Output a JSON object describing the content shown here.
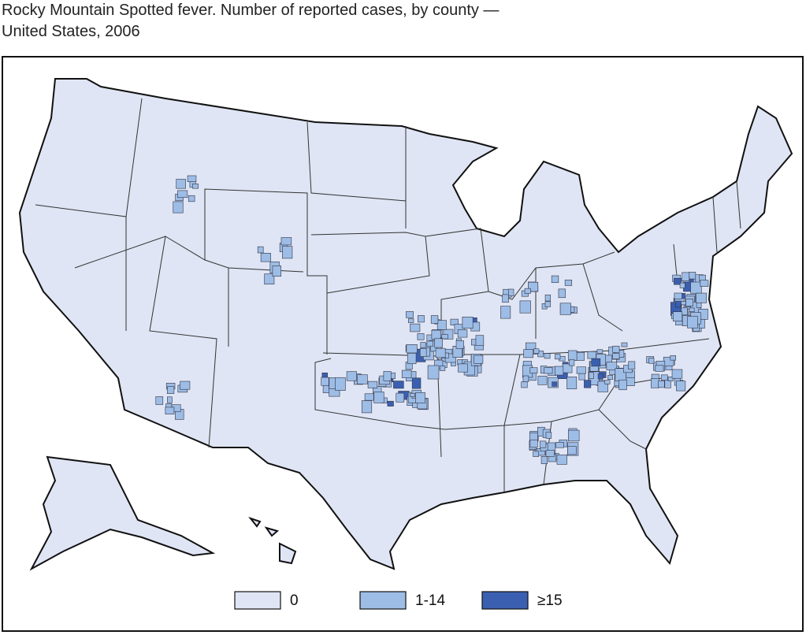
{
  "title": "Rocky Mountain Spotted fever. Number of reported cases, by county — United States, 2006",
  "legend": [
    {
      "label": "0",
      "color": "#dfe5f4"
    },
    {
      "label": "1-14",
      "color": "#9dbde6"
    },
    {
      "label": "≥15",
      "color": "#3b5fb0"
    }
  ]
}
